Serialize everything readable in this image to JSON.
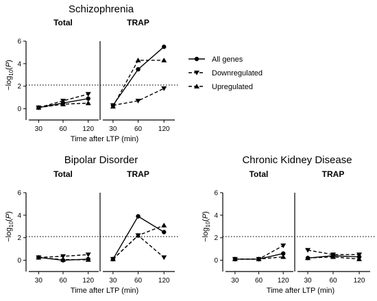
{
  "chart_data": [
    {
      "type": "line",
      "title": "Schizophrenia",
      "xlabel": "Time after LTP (min)",
      "ylabel": "−log10(P)",
      "ylim": [
        -1,
        6
      ],
      "yticks": [
        0,
        2,
        4,
        6
      ],
      "threshold": 2.1,
      "legend": "right",
      "subpanels": [
        {
          "title": "Total",
          "categories": [
            "30",
            "60",
            "120"
          ],
          "series": [
            {
              "name": "All genes",
              "values": [
                0.1,
                0.5,
                0.9
              ]
            },
            {
              "name": "Downregulated",
              "values": [
                0.1,
                0.7,
                1.3
              ]
            },
            {
              "name": "Upregulated",
              "values": [
                0.1,
                0.4,
                0.5
              ]
            }
          ]
        },
        {
          "title": "TRAP",
          "categories": [
            "30",
            "60",
            "120"
          ],
          "series": [
            {
              "name": "All genes",
              "values": [
                0.3,
                3.5,
                5.5
              ]
            },
            {
              "name": "Downregulated",
              "values": [
                0.3,
                0.7,
                1.8
              ]
            },
            {
              "name": "Upregulated",
              "values": [
                0.2,
                4.3,
                4.3
              ]
            }
          ]
        }
      ]
    },
    {
      "type": "line",
      "title": "Bipolar Disorder",
      "xlabel": "Time after LTP (min)",
      "ylabel": "−log10(P)",
      "ylim": [
        -1,
        6
      ],
      "yticks": [
        0,
        2,
        4,
        6
      ],
      "threshold": 2.1,
      "subpanels": [
        {
          "title": "Total",
          "categories": [
            "30",
            "60",
            "120"
          ],
          "series": [
            {
              "name": "All genes",
              "values": [
                0.25,
                0.0,
                0.1
              ]
            },
            {
              "name": "Downregulated",
              "values": [
                0.25,
                0.35,
                0.5
              ]
            },
            {
              "name": "Upregulated",
              "values": [
                0.25,
                0.05,
                0.05
              ]
            }
          ]
        },
        {
          "title": "TRAP",
          "categories": [
            "30",
            "60",
            "120"
          ],
          "series": [
            {
              "name": "All genes",
              "values": [
                0.1,
                3.9,
                2.5
              ]
            },
            {
              "name": "Downregulated",
              "values": [
                0.1,
                2.2,
                0.25
              ]
            },
            {
              "name": "Upregulated",
              "values": [
                0.1,
                2.2,
                3.1
              ]
            }
          ]
        }
      ]
    },
    {
      "type": "line",
      "title": "Chronic Kidney Disease",
      "xlabel": "Time after LTP (min)",
      "ylabel": "−log10(P)",
      "ylim": [
        -1,
        6
      ],
      "yticks": [
        0,
        2,
        4,
        6
      ],
      "threshold": 2.1,
      "subpanels": [
        {
          "title": "Total",
          "categories": [
            "30",
            "60",
            "120"
          ],
          "series": [
            {
              "name": "All genes",
              "values": [
                0.1,
                0.1,
                0.6
              ]
            },
            {
              "name": "Downregulated",
              "values": [
                0.1,
                0.1,
                1.3
              ]
            },
            {
              "name": "Upregulated",
              "values": [
                0.1,
                0.1,
                0.3
              ]
            }
          ]
        },
        {
          "title": "TRAP",
          "categories": [
            "30",
            "60",
            "120"
          ],
          "series": [
            {
              "name": "All genes",
              "values": [
                0.2,
                0.4,
                0.3
              ]
            },
            {
              "name": "Downregulated",
              "values": [
                0.9,
                0.5,
                0.5
              ]
            },
            {
              "name": "Upregulated",
              "values": [
                0.2,
                0.3,
                0.1
              ]
            }
          ]
        }
      ]
    }
  ],
  "legend": {
    "items": [
      {
        "name": "All genes",
        "marker": "circle",
        "dash": "solid"
      },
      {
        "name": "Downregulated",
        "marker": "triangle-down",
        "dash": "dashed"
      },
      {
        "name": "Upregulated",
        "marker": "triangle-up",
        "dash": "dashed"
      }
    ]
  }
}
